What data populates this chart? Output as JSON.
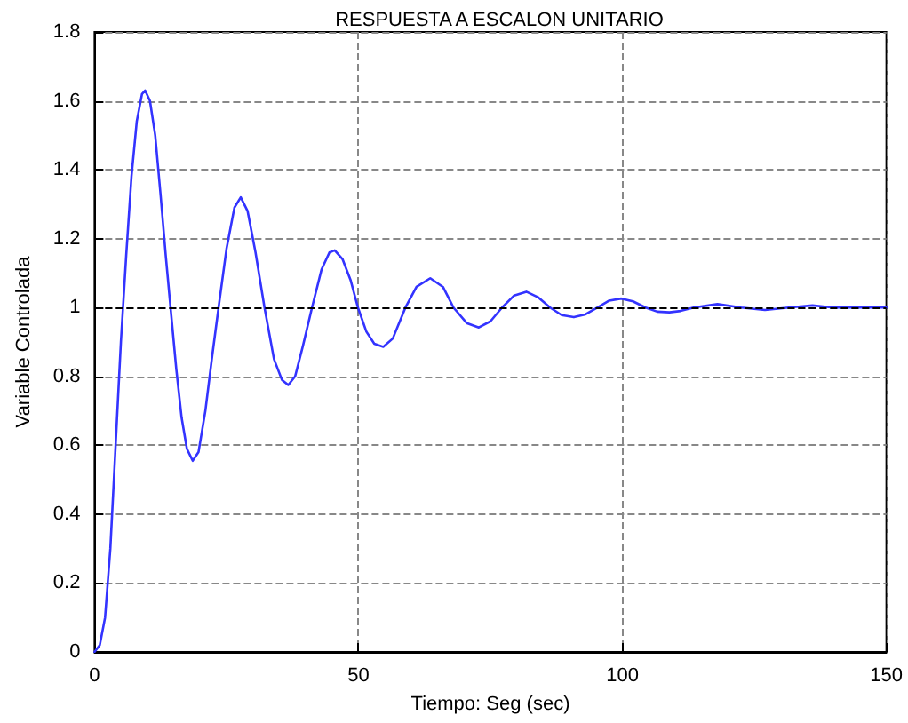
{
  "chart_data": {
    "type": "line",
    "title": "RESPUESTA A ESCALON UNITARIO",
    "xlabel": "Tiempo: Seg (sec)",
    "ylabel": "Variable Controlada",
    "xlim": [
      0,
      150
    ],
    "xticks": [
      0,
      50,
      100,
      150
    ],
    "ylim": [
      0,
      1.8
    ],
    "yticks": [
      0,
      0.2,
      0.4,
      0.6,
      0.8,
      1,
      1.2,
      1.4,
      1.6,
      1.8
    ],
    "grid": true,
    "marker": "none",
    "line_style": "solid",
    "ref_lines": [
      {
        "axis": "y",
        "value": 1,
        "color": "#000000",
        "line_style": "dashed"
      }
    ],
    "series": [
      {
        "color": "#3333ff",
        "x": [
          0,
          1,
          2,
          3,
          4,
          5,
          6,
          7,
          8,
          9,
          9.6,
          10.5,
          11.5,
          12.5,
          13.5,
          14.4,
          15.5,
          16.5,
          17.5,
          18.6,
          19.7,
          21,
          22.3,
          23.5,
          25,
          26.5,
          27.7,
          29,
          30.5,
          32.2,
          34,
          35.5,
          36.7,
          38,
          39.5,
          41.2,
          43,
          44.5,
          45.5,
          47,
          48.5,
          49.9,
          51.5,
          53,
          54.7,
          56.5,
          58.9,
          61,
          63.6,
          66,
          68,
          70.5,
          72.8,
          75,
          77.2,
          79.5,
          81.8,
          84,
          86.3,
          88.5,
          90.8,
          93,
          95.3,
          97.5,
          99.8,
          102,
          104.4,
          106.6,
          108.9,
          111,
          113.5,
          118,
          122.5,
          127,
          131.5,
          136,
          140,
          150
        ],
        "values": [
          0,
          0.02,
          0.1,
          0.3,
          0.6,
          0.9,
          1.15,
          1.38,
          1.54,
          1.62,
          1.63,
          1.6,
          1.5,
          1.33,
          1.15,
          1,
          0.82,
          0.68,
          0.59,
          0.555,
          0.58,
          0.7,
          0.86,
          1,
          1.17,
          1.29,
          1.32,
          1.28,
          1.16,
          1,
          0.85,
          0.79,
          0.775,
          0.8,
          0.89,
          1,
          1.11,
          1.16,
          1.166,
          1.14,
          1.08,
          1,
          0.93,
          0.895,
          0.886,
          0.91,
          1,
          1.06,
          1.085,
          1.06,
          1,
          0.955,
          0.942,
          0.96,
          1,
          1.035,
          1.046,
          1.03,
          1,
          0.978,
          0.972,
          0.98,
          1,
          1.02,
          1.026,
          1.018,
          1,
          0.988,
          0.986,
          0.99,
          1,
          1.01,
          1,
          0.993,
          1,
          1.006,
          1,
          1
        ]
      }
    ]
  }
}
